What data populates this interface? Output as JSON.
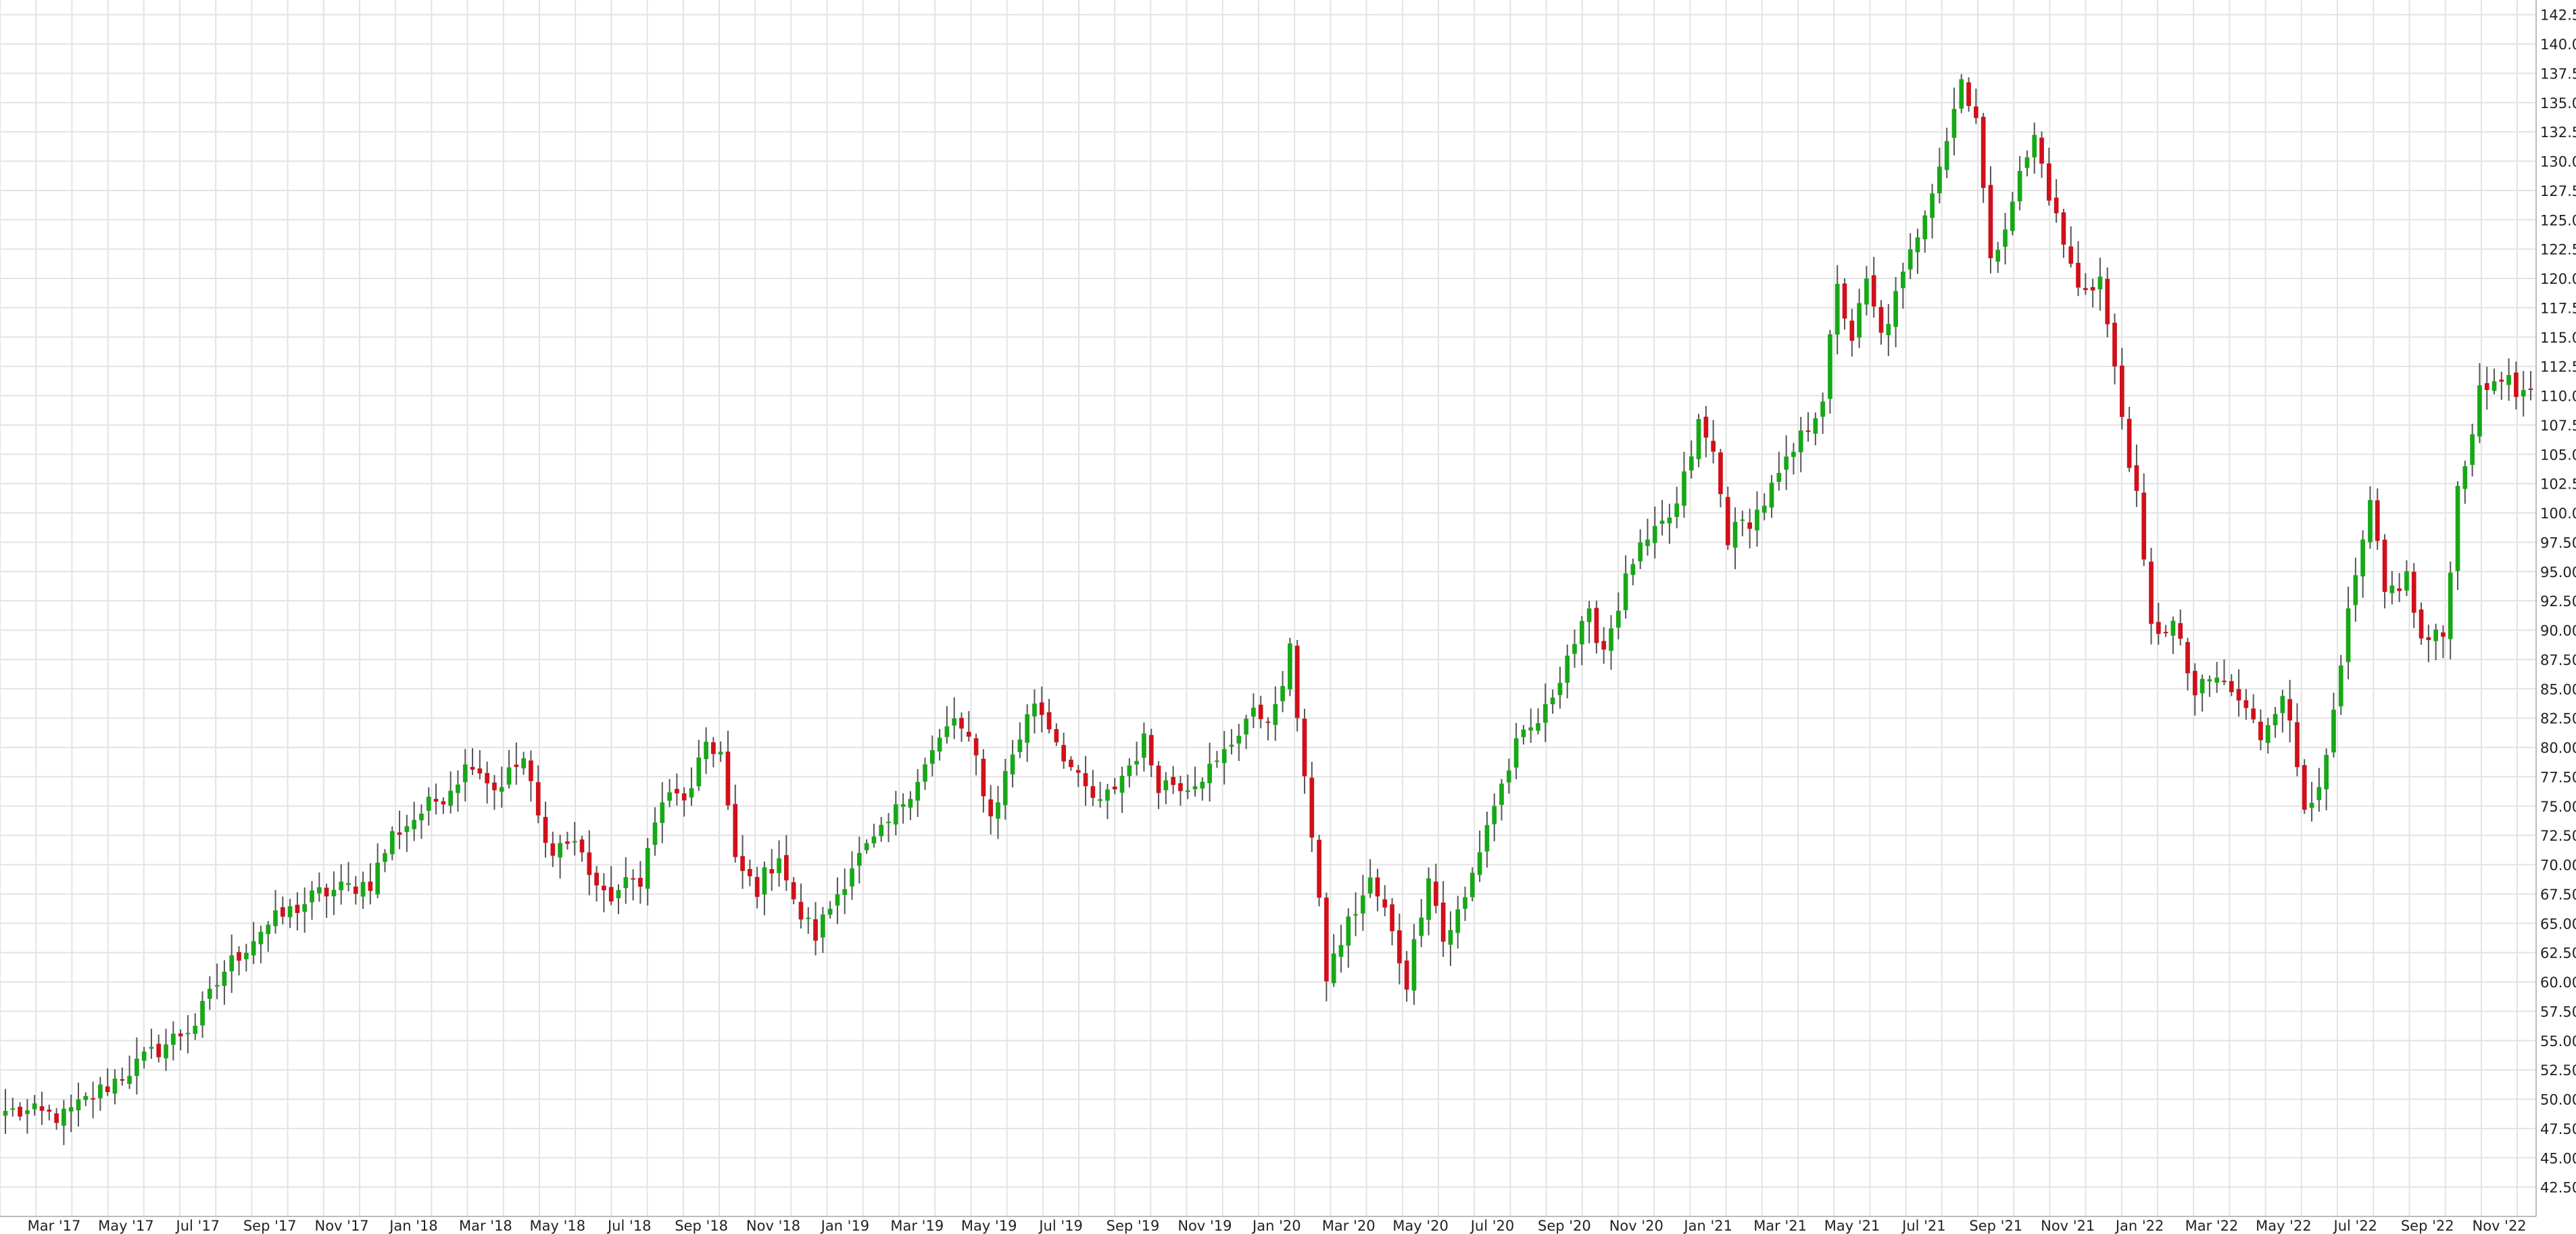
{
  "chart_data": {
    "type": "candlestick",
    "title": "",
    "xlabel": "",
    "ylabel": "",
    "interval": "weekly",
    "ylim": [
      40.0,
      143.75
    ],
    "y_ticks": [
      "42.50",
      "45.00",
      "47.50",
      "50.00",
      "52.50",
      "55.00",
      "57.50",
      "60.00",
      "62.50",
      "65.00",
      "67.50",
      "70.00",
      "72.50",
      "75.00",
      "77.50",
      "80.00",
      "82.50",
      "85.00",
      "87.50",
      "90.00",
      "92.50",
      "95.00",
      "97.50",
      "100.00",
      "102.50",
      "105.00",
      "107.50",
      "110.00",
      "112.50",
      "115.00",
      "117.50",
      "120.00",
      "122.50",
      "125.00",
      "127.50",
      "130.00",
      "132.50",
      "135.00",
      "137.50",
      "140.00",
      "142.50"
    ],
    "x_ticks": [
      "Mar '17",
      "May '17",
      "Jul '17",
      "Sep '17",
      "Nov '17",
      "Jan '18",
      "Mar '18",
      "May '18",
      "Jul '18",
      "Sep '18",
      "Nov '18",
      "Jan '19",
      "Mar '19",
      "May '19",
      "Jul '19",
      "Sep '19",
      "Nov '19",
      "Jan '20",
      "Mar '20",
      "May '20",
      "Jul '20",
      "Sep '20",
      "Nov '20",
      "Jan '21",
      "Mar '21",
      "May '21",
      "Jul '21",
      "Sep '21",
      "Nov '21",
      "Jan '22",
      "Mar '22",
      "May '22",
      "Jul '22",
      "Sep '22",
      "Nov '22"
    ],
    "colors": {
      "up": "#17a817",
      "down": "#d0101a",
      "wick": "#555555",
      "grid": "#e3e3e3",
      "axis": "#bdbdbd"
    },
    "anchors": [
      {
        "i": 0,
        "p": 49.0
      },
      {
        "i": 8,
        "p": 48.5
      },
      {
        "i": 17,
        "p": 52.5
      },
      {
        "i": 26,
        "p": 56.5
      },
      {
        "i": 30,
        "p": 61.0
      },
      {
        "i": 35,
        "p": 64.5
      },
      {
        "i": 43,
        "p": 67.5
      },
      {
        "i": 50,
        "p": 68.5
      },
      {
        "i": 53,
        "p": 72.5
      },
      {
        "i": 60,
        "p": 76.0
      },
      {
        "i": 64,
        "p": 79.0
      },
      {
        "i": 67,
        "p": 76.5
      },
      {
        "i": 71,
        "p": 79.0
      },
      {
        "i": 74,
        "p": 71.5
      },
      {
        "i": 78,
        "p": 72.0
      },
      {
        "i": 82,
        "p": 67.0
      },
      {
        "i": 87,
        "p": 69.0
      },
      {
        "i": 90,
        "p": 75.5
      },
      {
        "i": 94,
        "p": 76.0
      },
      {
        "i": 96,
        "p": 80.5
      },
      {
        "i": 98,
        "p": 79.5
      },
      {
        "i": 100,
        "p": 70.0
      },
      {
        "i": 103,
        "p": 68.0
      },
      {
        "i": 106,
        "p": 71.0
      },
      {
        "i": 108,
        "p": 66.5
      },
      {
        "i": 111,
        "p": 64.0
      },
      {
        "i": 116,
        "p": 70.0
      },
      {
        "i": 120,
        "p": 72.5
      },
      {
        "i": 124,
        "p": 76.5
      },
      {
        "i": 130,
        "p": 82.5
      },
      {
        "i": 133,
        "p": 79.0
      },
      {
        "i": 135,
        "p": 74.0
      },
      {
        "i": 138,
        "p": 79.5
      },
      {
        "i": 141,
        "p": 84.0
      },
      {
        "i": 143,
        "p": 82.0
      },
      {
        "i": 147,
        "p": 77.0
      },
      {
        "i": 150,
        "p": 75.0
      },
      {
        "i": 154,
        "p": 78.5
      },
      {
        "i": 156,
        "p": 80.5
      },
      {
        "i": 158,
        "p": 77.0
      },
      {
        "i": 162,
        "p": 77.0
      },
      {
        "i": 166,
        "p": 78.5
      },
      {
        "i": 170,
        "p": 82.5
      },
      {
        "i": 174,
        "p": 83.0
      },
      {
        "i": 176,
        "p": 88.0
      },
      {
        "i": 178,
        "p": 78.0
      },
      {
        "i": 181,
        "p": 60.5
      },
      {
        "i": 184,
        "p": 65.0
      },
      {
        "i": 187,
        "p": 68.5
      },
      {
        "i": 189,
        "p": 66.0
      },
      {
        "i": 192,
        "p": 60.0
      },
      {
        "i": 195,
        "p": 69.5
      },
      {
        "i": 197,
        "p": 63.5
      },
      {
        "i": 200,
        "p": 67.0
      },
      {
        "i": 203,
        "p": 73.5
      },
      {
        "i": 207,
        "p": 80.0
      },
      {
        "i": 211,
        "p": 83.0
      },
      {
        "i": 214,
        "p": 88.0
      },
      {
        "i": 217,
        "p": 91.0
      },
      {
        "i": 219,
        "p": 88.5
      },
      {
        "i": 223,
        "p": 96.0
      },
      {
        "i": 226,
        "p": 98.0
      },
      {
        "i": 229,
        "p": 100.5
      },
      {
        "i": 232,
        "p": 107.5
      },
      {
        "i": 234,
        "p": 105.0
      },
      {
        "i": 236,
        "p": 98.0
      },
      {
        "i": 240,
        "p": 100.0
      },
      {
        "i": 244,
        "p": 104.0
      },
      {
        "i": 247,
        "p": 107.5
      },
      {
        "i": 249,
        "p": 110.0
      },
      {
        "i": 251,
        "p": 119.0
      },
      {
        "i": 253,
        "p": 115.0
      },
      {
        "i": 255,
        "p": 119.5
      },
      {
        "i": 257,
        "p": 115.0
      },
      {
        "i": 260,
        "p": 120.0
      },
      {
        "i": 263,
        "p": 126.0
      },
      {
        "i": 266,
        "p": 132.0
      },
      {
        "i": 268,
        "p": 137.0
      },
      {
        "i": 270,
        "p": 134.0
      },
      {
        "i": 272,
        "p": 121.0
      },
      {
        "i": 275,
        "p": 127.0
      },
      {
        "i": 278,
        "p": 132.0
      },
      {
        "i": 281,
        "p": 125.0
      },
      {
        "i": 284,
        "p": 119.0
      },
      {
        "i": 287,
        "p": 120.0
      },
      {
        "i": 289,
        "p": 112.0
      },
      {
        "i": 292,
        "p": 101.0
      },
      {
        "i": 294,
        "p": 90.0
      },
      {
        "i": 297,
        "p": 90.5
      },
      {
        "i": 300,
        "p": 84.5
      },
      {
        "i": 303,
        "p": 86.0
      },
      {
        "i": 306,
        "p": 84.0
      },
      {
        "i": 309,
        "p": 81.0
      },
      {
        "i": 312,
        "p": 85.0
      },
      {
        "i": 315,
        "p": 75.0
      },
      {
        "i": 318,
        "p": 78.5
      },
      {
        "i": 321,
        "p": 91.0
      },
      {
        "i": 324,
        "p": 100.5
      },
      {
        "i": 326,
        "p": 93.0
      },
      {
        "i": 329,
        "p": 94.5
      },
      {
        "i": 331,
        "p": 89.0
      },
      {
        "i": 334,
        "p": 89.5
      },
      {
        "i": 336,
        "p": 102.0
      },
      {
        "i": 339,
        "p": 110.0
      },
      {
        "i": 342,
        "p": 112.0
      },
      {
        "i": 344,
        "p": 110.0
      },
      {
        "i": 346,
        "p": 110.5
      }
    ]
  }
}
